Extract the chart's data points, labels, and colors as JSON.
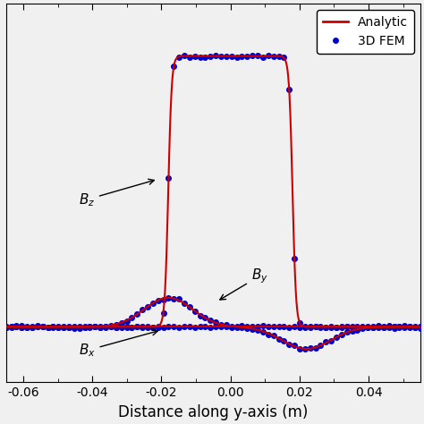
{
  "title": "",
  "xlabel": "Distance along y-axis (m)",
  "ylabel": "",
  "xlim": [
    -0.065,
    0.055
  ],
  "ylim": [
    -0.18,
    1.05
  ],
  "xticks": [
    -0.06,
    -0.04,
    -0.02,
    0.0,
    0.02,
    0.04
  ],
  "xtick_labels": [
    "-0.06",
    "-0.04",
    "-0.02",
    "0.00",
    "0.02",
    "0.04"
  ],
  "line_color": "#cc0000",
  "dot_color": "#0000cc",
  "dot_size": 16,
  "legend_labels": [
    "Analytic",
    "3D FEM"
  ],
  "figsize": [
    4.74,
    4.74
  ],
  "dpi": 100,
  "bg_color": "#f0f0f0"
}
